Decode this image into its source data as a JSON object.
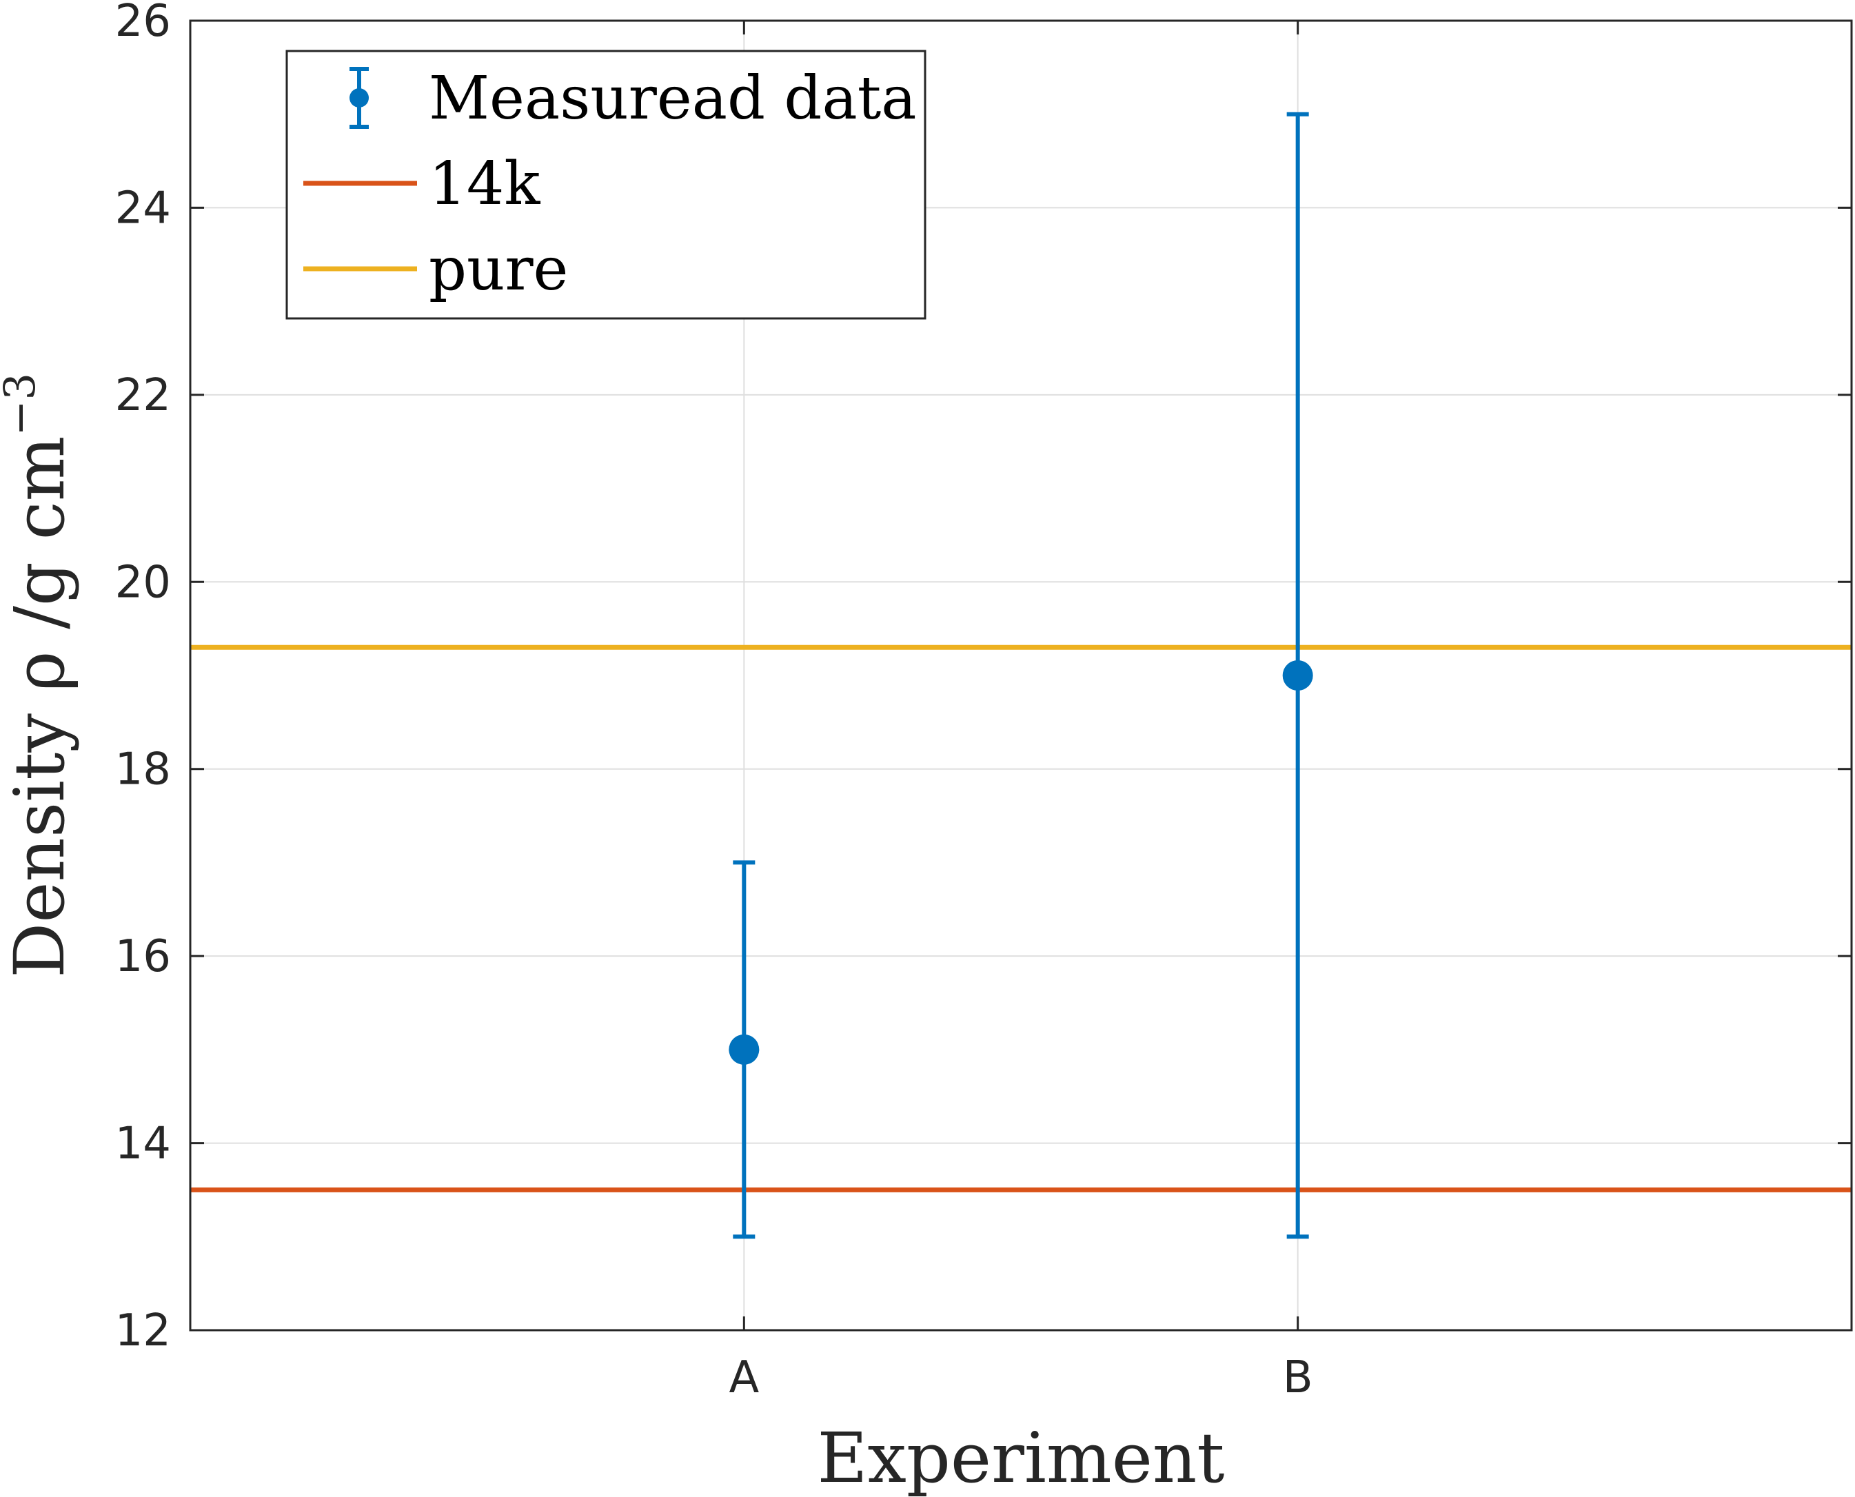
{
  "chart_data": {
    "type": "scatter",
    "title": "",
    "xlabel": "Experiment",
    "ylabel": "Density ρ /g cm",
    "ylabel_exponent": "−3",
    "categories": [
      "A",
      "B"
    ],
    "ylim": [
      12,
      26
    ],
    "yticks": [
      12,
      14,
      16,
      18,
      20,
      22,
      24,
      26
    ],
    "grid": true,
    "legend_position": "top-left",
    "series": [
      {
        "name": "Measuread data",
        "kind": "errorbar",
        "color": "#0072BD",
        "values": [
          15,
          19
        ],
        "lower": [
          13,
          13
        ],
        "upper": [
          17,
          25
        ]
      }
    ],
    "reference_lines": [
      {
        "name": "14k",
        "value": 13.5,
        "color": "#D95319"
      },
      {
        "name": "pure",
        "value": 19.3,
        "color": "#EDB120"
      }
    ]
  }
}
